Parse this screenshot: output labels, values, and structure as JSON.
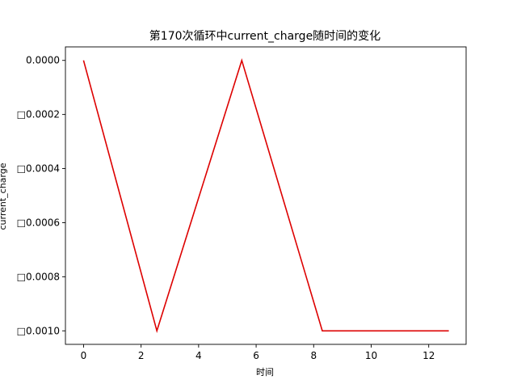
{
  "chart_data": {
    "type": "line",
    "title": "第170次循环中current_charge随时间的变化",
    "xlabel": "时间",
    "ylabel": "current_charge",
    "xlim": [
      -0.63,
      13.3
    ],
    "ylim": [
      -0.00105,
      5e-05
    ],
    "x_ticks": [
      0,
      2,
      4,
      6,
      8,
      10,
      12
    ],
    "x_tick_labels": [
      "0",
      "2",
      "4",
      "6",
      "8",
      "10",
      "12"
    ],
    "y_ticks": [
      0,
      -0.0002,
      -0.0004,
      -0.0006,
      -0.0008,
      -0.001
    ],
    "y_tick_labels": [
      "0.0000",
      "□0.0002",
      "□0.0004",
      "□0.0006",
      "□0.0008",
      "□0.0010"
    ],
    "grid": false,
    "series": [
      {
        "color": "#dd0000",
        "x": [
          0,
          2.55,
          5.5,
          8.3,
          12.7
        ],
        "y": [
          0,
          -0.001,
          0,
          -0.001,
          -0.001
        ]
      }
    ]
  }
}
